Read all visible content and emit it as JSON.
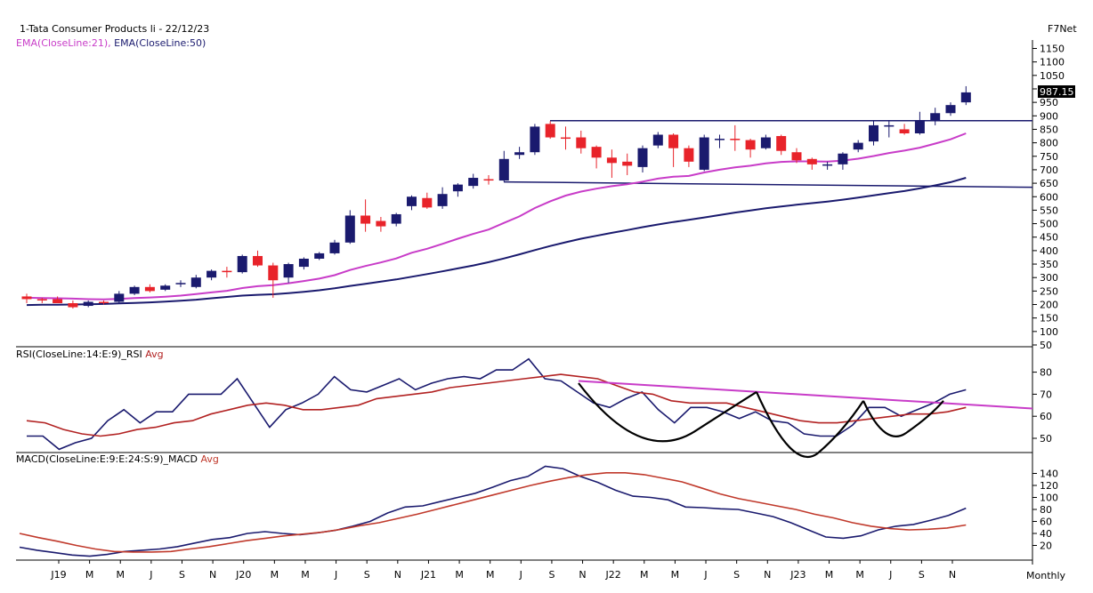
{
  "header": {
    "title": "1-Tata Consumer Products li - 22/12/23",
    "indicator_prefix": "EMA(CloseLine:21),",
    "indicator_suffix": " EMA(CloseLine:50)",
    "brand": "F7Net",
    "last_price": "987.15"
  },
  "panels": {
    "rsi_title_main": "RSI(CloseLine:14:E:9)_RSI",
    "rsi_title_avg": " Avg",
    "macd_title_main": "MACD(CloseLine:E:9:E:24:S:9)_MACD",
    "macd_title_avg": " Avg",
    "period": "Monthly"
  },
  "colors": {
    "up": "#1a1a6e",
    "down": "#e8232a",
    "ema21": "#c83cc8",
    "ema50": "#1a1a6e",
    "rsi": "#1a1a6e",
    "rsi_avg": "#b22222",
    "macd": "#1a1a6e",
    "macd_avg": "#c0392b",
    "trendline_magenta": "#c83cc8",
    "trendline_blue": "#1a1a6e",
    "pattern": "#000000"
  },
  "chart_data": [
    {
      "type": "candlestick",
      "title": "1-Tata Consumer Products li - 22/12/23",
      "ylim": [
        50,
        1150
      ],
      "yticks": [
        50,
        100,
        150,
        200,
        250,
        300,
        350,
        400,
        450,
        500,
        550,
        600,
        650,
        700,
        750,
        800,
        850,
        900,
        950,
        1000,
        1050,
        1100,
        1150
      ],
      "x_labels": [
        "J19",
        "M",
        "M",
        "J",
        "S",
        "N",
        "J20",
        "M",
        "M",
        "J",
        "S",
        "N",
        "J21",
        "M",
        "M",
        "J",
        "S",
        "N",
        "J22",
        "M",
        "M",
        "J",
        "S",
        "N",
        "J23",
        "M",
        "M",
        "J",
        "S",
        "N"
      ],
      "candles": [
        {
          "o": 230,
          "h": 240,
          "l": 205,
          "c": 220
        },
        {
          "o": 220,
          "h": 225,
          "l": 205,
          "c": 215
        },
        {
          "o": 220,
          "h": 230,
          "l": 205,
          "c": 205
        },
        {
          "o": 205,
          "h": 215,
          "l": 185,
          "c": 190
        },
        {
          "o": 195,
          "h": 215,
          "l": 190,
          "c": 210
        },
        {
          "o": 210,
          "h": 215,
          "l": 200,
          "c": 205
        },
        {
          "o": 210,
          "h": 250,
          "l": 205,
          "c": 240
        },
        {
          "o": 240,
          "h": 270,
          "l": 235,
          "c": 265
        },
        {
          "o": 265,
          "h": 275,
          "l": 245,
          "c": 250
        },
        {
          "o": 255,
          "h": 275,
          "l": 250,
          "c": 270
        },
        {
          "o": 275,
          "h": 290,
          "l": 265,
          "c": 280
        },
        {
          "o": 265,
          "h": 310,
          "l": 260,
          "c": 300
        },
        {
          "o": 300,
          "h": 330,
          "l": 290,
          "c": 325
        },
        {
          "o": 325,
          "h": 340,
          "l": 300,
          "c": 320
        },
        {
          "o": 320,
          "h": 385,
          "l": 315,
          "c": 380
        },
        {
          "o": 380,
          "h": 400,
          "l": 340,
          "c": 345
        },
        {
          "o": 345,
          "h": 355,
          "l": 225,
          "c": 290
        },
        {
          "o": 300,
          "h": 355,
          "l": 280,
          "c": 350
        },
        {
          "o": 340,
          "h": 375,
          "l": 330,
          "c": 370
        },
        {
          "o": 370,
          "h": 395,
          "l": 365,
          "c": 390
        },
        {
          "o": 390,
          "h": 440,
          "l": 385,
          "c": 430
        },
        {
          "o": 430,
          "h": 550,
          "l": 425,
          "c": 530
        },
        {
          "o": 530,
          "h": 590,
          "l": 470,
          "c": 500
        },
        {
          "o": 510,
          "h": 525,
          "l": 470,
          "c": 490
        },
        {
          "o": 500,
          "h": 540,
          "l": 490,
          "c": 535
        },
        {
          "o": 565,
          "h": 605,
          "l": 550,
          "c": 600
        },
        {
          "o": 595,
          "h": 615,
          "l": 555,
          "c": 560
        },
        {
          "o": 565,
          "h": 635,
          "l": 555,
          "c": 610
        },
        {
          "o": 620,
          "h": 650,
          "l": 600,
          "c": 645
        },
        {
          "o": 640,
          "h": 685,
          "l": 630,
          "c": 670
        },
        {
          "o": 665,
          "h": 680,
          "l": 645,
          "c": 660
        },
        {
          "o": 660,
          "h": 770,
          "l": 655,
          "c": 740
        },
        {
          "o": 755,
          "h": 785,
          "l": 740,
          "c": 765
        },
        {
          "o": 765,
          "h": 870,
          "l": 755,
          "c": 860
        },
        {
          "o": 870,
          "h": 880,
          "l": 815,
          "c": 820
        },
        {
          "o": 820,
          "h": 860,
          "l": 775,
          "c": 815
        },
        {
          "o": 820,
          "h": 845,
          "l": 760,
          "c": 780
        },
        {
          "o": 785,
          "h": 790,
          "l": 705,
          "c": 745
        },
        {
          "o": 745,
          "h": 775,
          "l": 670,
          "c": 725
        },
        {
          "o": 730,
          "h": 760,
          "l": 680,
          "c": 715
        },
        {
          "o": 710,
          "h": 790,
          "l": 690,
          "c": 780
        },
        {
          "o": 790,
          "h": 840,
          "l": 780,
          "c": 830
        },
        {
          "o": 830,
          "h": 835,
          "l": 710,
          "c": 780
        },
        {
          "o": 780,
          "h": 790,
          "l": 710,
          "c": 730
        },
        {
          "o": 700,
          "h": 830,
          "l": 695,
          "c": 820
        },
        {
          "o": 810,
          "h": 830,
          "l": 780,
          "c": 815
        },
        {
          "o": 815,
          "h": 865,
          "l": 770,
          "c": 810
        },
        {
          "o": 810,
          "h": 815,
          "l": 745,
          "c": 775
        },
        {
          "o": 780,
          "h": 830,
          "l": 775,
          "c": 820
        },
        {
          "o": 825,
          "h": 830,
          "l": 755,
          "c": 770
        },
        {
          "o": 765,
          "h": 780,
          "l": 725,
          "c": 735
        },
        {
          "o": 740,
          "h": 745,
          "l": 700,
          "c": 720
        },
        {
          "o": 715,
          "h": 730,
          "l": 700,
          "c": 720
        },
        {
          "o": 720,
          "h": 765,
          "l": 700,
          "c": 760
        },
        {
          "o": 775,
          "h": 810,
          "l": 765,
          "c": 800
        },
        {
          "o": 805,
          "h": 880,
          "l": 790,
          "c": 865
        },
        {
          "o": 860,
          "h": 880,
          "l": 820,
          "c": 865
        },
        {
          "o": 850,
          "h": 870,
          "l": 830,
          "c": 835
        },
        {
          "o": 835,
          "h": 915,
          "l": 830,
          "c": 880
        },
        {
          "o": 880,
          "h": 930,
          "l": 865,
          "c": 910
        },
        {
          "o": 910,
          "h": 950,
          "l": 900,
          "c": 940
        },
        {
          "o": 950,
          "h": 1010,
          "l": 940,
          "c": 987
        }
      ],
      "series": [
        {
          "name": "EMA(CloseLine:21)",
          "values": [
            225,
            224,
            223,
            222,
            220,
            219,
            221,
            224,
            226,
            229,
            233,
            239,
            245,
            251,
            261,
            268,
            272,
            279,
            287,
            296,
            309,
            328,
            343,
            356,
            371,
            392,
            407,
            425,
            444,
            462,
            478,
            503,
            527,
            558,
            583,
            604,
            619,
            630,
            639,
            646,
            656,
            667,
            674,
            677,
            690,
            700,
            709,
            715,
            724,
            729,
            731,
            731,
            730,
            734,
            741,
            751,
            762,
            771,
            782,
            797,
            813,
            835
          ]
        },
        {
          "name": "EMA(CloseLine:50)",
          "values": [
            198,
            199,
            199,
            200,
            201,
            202,
            204,
            206,
            208,
            211,
            214,
            218,
            223,
            228,
            233,
            236,
            238,
            242,
            247,
            253,
            260,
            269,
            277,
            285,
            293,
            303,
            313,
            323,
            334,
            345,
            357,
            371,
            386,
            402,
            417,
            431,
            444,
            455,
            466,
            476,
            487,
            497,
            506,
            514,
            523,
            532,
            541,
            549,
            557,
            564,
            570,
            576,
            582,
            589,
            597,
            605,
            613,
            621,
            631,
            642,
            654,
            670
          ]
        }
      ],
      "trendlines": [
        {
          "name": "resistance",
          "value": 882
        },
        {
          "name": "support",
          "value_start": 655,
          "value_end": 635
        }
      ]
    },
    {
      "type": "line",
      "title": "RSI(CloseLine:14:E:9)_RSI Avg",
      "ylim": [
        40,
        88
      ],
      "yticks": [
        50,
        60,
        70,
        80
      ],
      "series": [
        {
          "name": "RSI",
          "values": [
            51,
            51,
            45,
            48,
            50,
            58,
            63,
            57,
            62,
            62,
            70,
            70,
            70,
            77,
            66,
            55,
            63,
            66,
            70,
            78,
            72,
            71,
            74,
            77,
            72,
            75,
            77,
            78,
            77,
            81,
            81,
            86,
            77,
            76,
            71,
            66,
            64,
            68,
            71,
            63,
            57,
            64,
            64,
            62,
            59,
            62,
            58,
            57,
            52,
            51,
            51,
            56,
            64,
            64,
            60,
            63,
            66,
            70,
            72
          ]
        },
        {
          "name": "Avg",
          "values": [
            58,
            57,
            54,
            52,
            51,
            52,
            54,
            55,
            57,
            58,
            61,
            63,
            65,
            66,
            65,
            63,
            63,
            64,
            65,
            68,
            69,
            70,
            71,
            73,
            74,
            75,
            76,
            77,
            78,
            79,
            78,
            77,
            74,
            71,
            70,
            67,
            66,
            66,
            66,
            64,
            62,
            60,
            58,
            57,
            57,
            58,
            59,
            60,
            61,
            61,
            62,
            64
          ]
        }
      ],
      "annotations": [
        "descending trendline",
        "double bottom",
        "inverse head and shoulders"
      ]
    },
    {
      "type": "line",
      "title": "MACD(CloseLine:E:9:E:24:S:9)_MACD Avg",
      "ylim": [
        0,
        155
      ],
      "yticks": [
        20,
        40,
        60,
        80,
        100,
        120,
        140
      ],
      "series": [
        {
          "name": "MACD",
          "values": [
            17,
            12,
            8,
            4,
            2,
            5,
            10,
            12,
            14,
            18,
            24,
            30,
            33,
            40,
            43,
            40,
            38,
            41,
            45,
            52,
            60,
            74,
            84,
            86,
            93,
            100,
            107,
            117,
            128,
            135,
            152,
            148,
            135,
            125,
            112,
            102,
            100,
            96,
            84,
            83,
            81,
            80,
            74,
            68,
            58,
            46,
            34,
            32,
            36,
            46,
            52,
            55,
            62,
            70,
            82
          ]
        },
        {
          "name": "Avg",
          "values": [
            40,
            33,
            27,
            20,
            14,
            10,
            9,
            9,
            10,
            14,
            18,
            23,
            28,
            32,
            36,
            39,
            42,
            47,
            53,
            58,
            65,
            72,
            80,
            88,
            96,
            104,
            112,
            120,
            127,
            133,
            138,
            141,
            141,
            138,
            132,
            126,
            116,
            106,
            98,
            92,
            86,
            80,
            72,
            66,
            58,
            52,
            48,
            46,
            47,
            49,
            54
          ]
        }
      ]
    }
  ]
}
